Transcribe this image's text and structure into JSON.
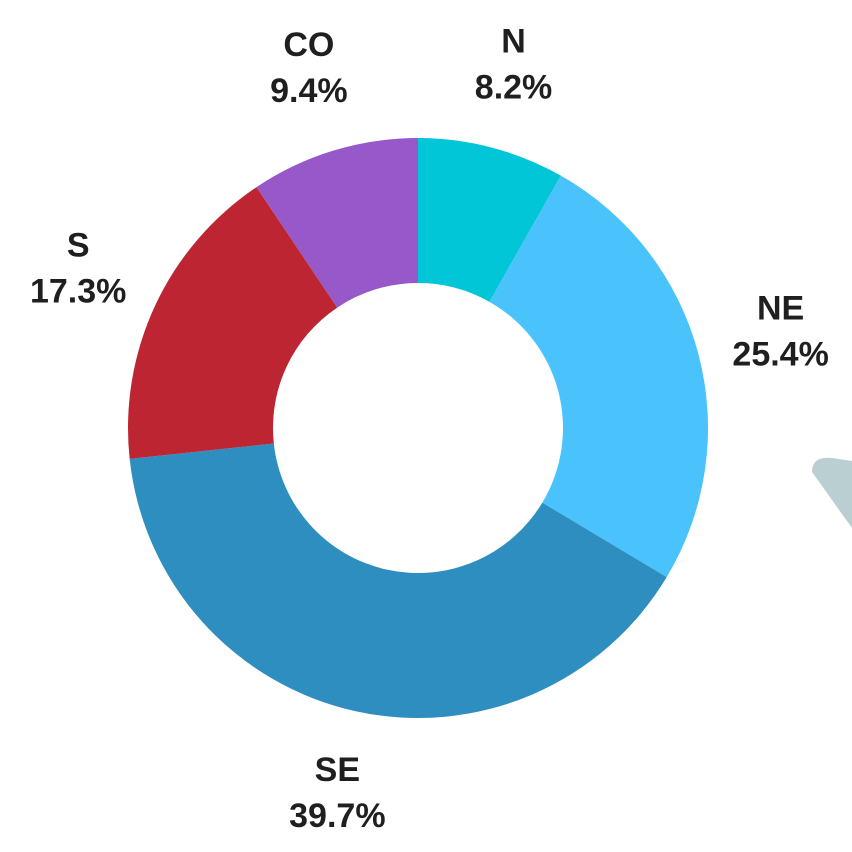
{
  "chart_data": {
    "type": "pie",
    "categories": [
      "N",
      "NE",
      "SE",
      "S",
      "CO"
    ],
    "values": [
      8.2,
      25.4,
      39.7,
      17.3,
      9.4
    ],
    "value_labels": [
      "8.2%",
      "25.4%",
      "39.7%",
      "17.3%",
      "9.4%"
    ],
    "colors": [
      "#00c6d7",
      "#4ac3fd",
      "#2e8ec0",
      "#bd2532",
      "#9759c9"
    ]
  }
}
